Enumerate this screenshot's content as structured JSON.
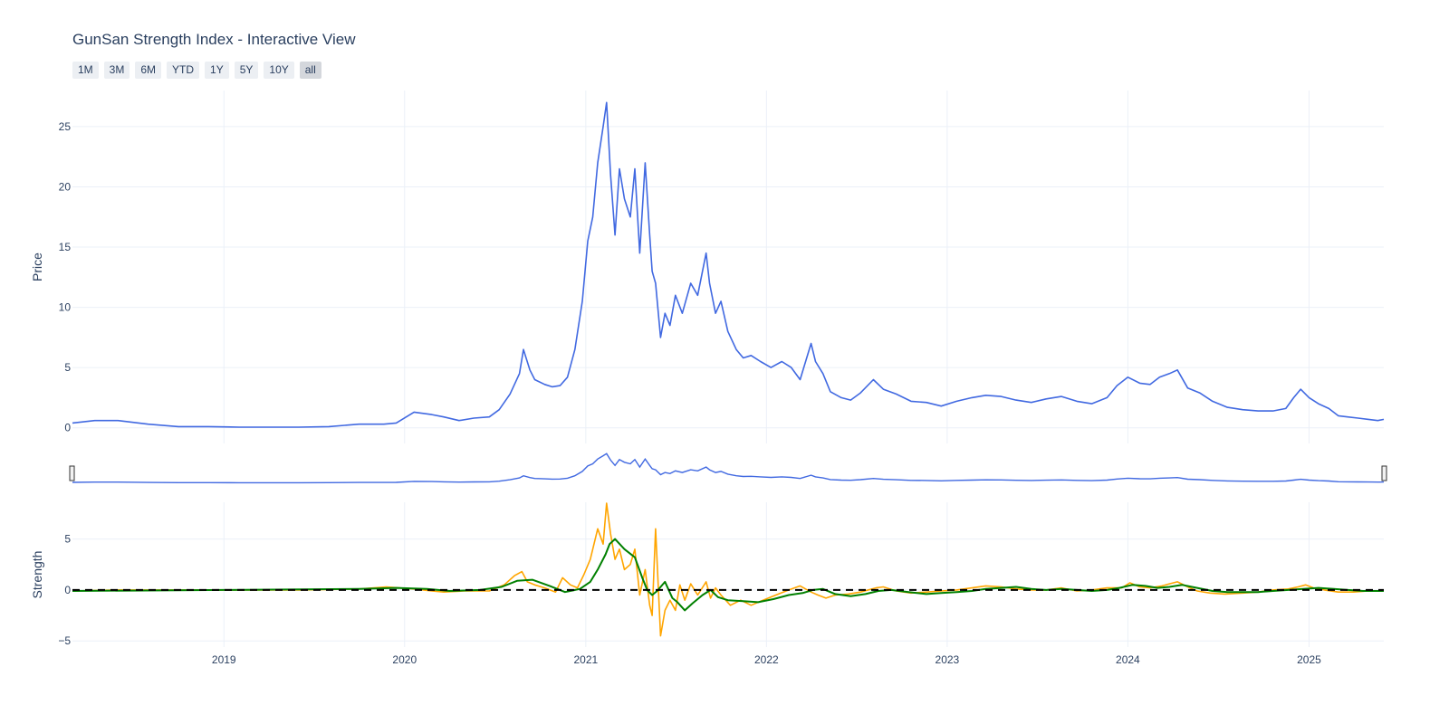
{
  "title": "GunSan Strength Index - Interactive View",
  "range_buttons": [
    "1M",
    "3M",
    "6M",
    "YTD",
    "1Y",
    "5Y",
    "10Y",
    "all"
  ],
  "active_range": "all",
  "colors": {
    "price_line": "#4169e1",
    "strength_raw": "#ffa500",
    "strength_smooth": "#008000",
    "zero_line": "#000000",
    "grid": "#ebf0f8",
    "text": "#2a3f5f"
  },
  "chart_data": [
    {
      "type": "line",
      "title": "GunSan Strength Index - Interactive View",
      "ylabel": "Price",
      "xlim": [
        "2018-03-01",
        "2025-06-01"
      ],
      "ylim": [
        -1.3,
        28
      ],
      "y_ticks": [
        0,
        5,
        10,
        15,
        20,
        25
      ],
      "x_ticks": [
        "2019",
        "2020",
        "2021",
        "2022",
        "2023",
        "2024",
        "2025"
      ],
      "grid": true,
      "series": [
        {
          "x": [
            "2018-03-01",
            "2018-04-15",
            "2018-06-01",
            "2018-08-01",
            "2018-10-01",
            "2018-12-01",
            "2019-02-01",
            "2019-04-01",
            "2019-06-01",
            "2019-08-01",
            "2019-10-01",
            "2019-11-20",
            "2019-12-15",
            "2020-01-20",
            "2020-02-25",
            "2020-03-20",
            "2020-04-20",
            "2020-05-20",
            "2020-06-20",
            "2020-07-10",
            "2020-08-01",
            "2020-08-20",
            "2020-08-28",
            "2020-09-10",
            "2020-09-20",
            "2020-10-10",
            "2020-10-25",
            "2020-11-10",
            "2020-11-25",
            "2020-12-10",
            "2020-12-25",
            "2021-01-05",
            "2021-01-15",
            "2021-01-25",
            "2021-02-05",
            "2021-02-12",
            "2021-02-20",
            "2021-03-01",
            "2021-03-10",
            "2021-03-20",
            "2021-04-01",
            "2021-04-10",
            "2021-04-20",
            "2021-05-01",
            "2021-05-10",
            "2021-05-15",
            "2021-05-22",
            "2021-06-01",
            "2021-06-10",
            "2021-06-20",
            "2021-07-01",
            "2021-07-15",
            "2021-08-01",
            "2021-08-15",
            "2021-09-01",
            "2021-09-08",
            "2021-09-20",
            "2021-10-01",
            "2021-10-15",
            "2021-11-01",
            "2021-11-15",
            "2021-12-01",
            "2021-12-20",
            "2022-01-10",
            "2022-02-01",
            "2022-02-20",
            "2022-03-10",
            "2022-04-01",
            "2022-04-10",
            "2022-04-25",
            "2022-05-10",
            "2022-06-01",
            "2022-06-20",
            "2022-07-10",
            "2022-08-05",
            "2022-08-25",
            "2022-09-20",
            "2022-10-20",
            "2022-11-20",
            "2022-12-20",
            "2023-01-20",
            "2023-02-20",
            "2023-03-20",
            "2023-04-20",
            "2023-05-20",
            "2023-06-20",
            "2023-07-20",
            "2023-08-20",
            "2023-09-20",
            "2023-10-20",
            "2023-11-20",
            "2023-12-10",
            "2024-01-01",
            "2024-01-25",
            "2024-02-15",
            "2024-03-05",
            "2024-03-25",
            "2024-04-10",
            "2024-05-01",
            "2024-05-25",
            "2024-06-20",
            "2024-07-20",
            "2024-08-20",
            "2024-09-20",
            "2024-10-20",
            "2024-11-15",
            "2024-12-01",
            "2024-12-15",
            "2025-01-01",
            "2025-01-20",
            "2025-02-10",
            "2025-03-01",
            "2025-03-20",
            "2025-04-10",
            "2025-05-01",
            "2025-05-20",
            "2025-06-01"
          ],
          "y": [
            0.4,
            0.6,
            0.6,
            0.3,
            0.1,
            0.1,
            0.05,
            0.05,
            0.05,
            0.1,
            0.3,
            0.3,
            0.4,
            1.3,
            1.1,
            0.9,
            0.6,
            0.8,
            0.9,
            1.5,
            2.8,
            4.5,
            6.5,
            4.8,
            4.0,
            3.6,
            3.4,
            3.5,
            4.2,
            6.5,
            10.5,
            15.5,
            17.5,
            22.0,
            25.0,
            27.0,
            21.0,
            16.0,
            21.5,
            19.0,
            17.5,
            21.5,
            14.5,
            22.0,
            16.0,
            13.0,
            12.0,
            7.5,
            9.5,
            8.5,
            11.0,
            9.5,
            12.0,
            11.0,
            14.5,
            12.0,
            9.5,
            10.5,
            8.0,
            6.5,
            5.8,
            6.0,
            5.5,
            5.0,
            5.5,
            5.0,
            4.0,
            7.0,
            5.5,
            4.5,
            3.0,
            2.5,
            2.3,
            2.9,
            4.0,
            3.2,
            2.8,
            2.2,
            2.1,
            1.8,
            2.2,
            2.5,
            2.7,
            2.6,
            2.3,
            2.1,
            2.4,
            2.6,
            2.2,
            2.0,
            2.5,
            3.5,
            4.2,
            3.7,
            3.6,
            4.2,
            4.5,
            4.8,
            3.3,
            2.9,
            2.2,
            1.7,
            1.5,
            1.4,
            1.4,
            1.6,
            2.5,
            3.2,
            2.5,
            2.0,
            1.6,
            1.0,
            0.9,
            0.8,
            0.7,
            0.6,
            0.7
          ]
        }
      ]
    },
    {
      "type": "line",
      "ylabel": "Strength",
      "xlim": [
        "2018-03-01",
        "2025-06-01"
      ],
      "ylim": [
        -5.6,
        8.6
      ],
      "y_ticks": [
        -5,
        0,
        5
      ],
      "x_ticks": [
        "2019",
        "2020",
        "2021",
        "2022",
        "2023",
        "2024",
        "2025"
      ],
      "grid": true,
      "series": [
        {
          "x": [
            "2018-03-01",
            "2018-06-01",
            "2019-01-01",
            "2019-06-01",
            "2019-10-01",
            "2019-11-25",
            "2019-12-20",
            "2020-01-20",
            "2020-02-25",
            "2020-03-20",
            "2020-05-01",
            "2020-06-20",
            "2020-07-20",
            "2020-08-10",
            "2020-08-25",
            "2020-09-05",
            "2020-09-20",
            "2020-10-10",
            "2020-11-01",
            "2020-11-15",
            "2020-12-01",
            "2020-12-15",
            "2020-12-28",
            "2021-01-10",
            "2021-01-25",
            "2021-02-05",
            "2021-02-12",
            "2021-02-20",
            "2021-03-01",
            "2021-03-10",
            "2021-03-20",
            "2021-04-01",
            "2021-04-10",
            "2021-04-20",
            "2021-05-01",
            "2021-05-10",
            "2021-05-15",
            "2021-05-22",
            "2021-06-01",
            "2021-06-10",
            "2021-06-20",
            "2021-07-01",
            "2021-07-10",
            "2021-07-20",
            "2021-08-01",
            "2021-08-15",
            "2021-09-01",
            "2021-09-10",
            "2021-09-20",
            "2021-10-01",
            "2021-10-20",
            "2021-11-10",
            "2021-12-01",
            "2021-12-25",
            "2022-01-20",
            "2022-02-15",
            "2022-03-10",
            "2022-04-01",
            "2022-04-15",
            "2022-05-01",
            "2022-05-20",
            "2022-06-15",
            "2022-07-10",
            "2022-08-10",
            "2022-08-25",
            "2022-09-20",
            "2022-10-20",
            "2022-11-20",
            "2022-12-20",
            "2023-01-20",
            "2023-02-20",
            "2023-03-20",
            "2023-04-20",
            "2023-05-20",
            "2023-06-20",
            "2023-07-20",
            "2023-08-20",
            "2023-09-20",
            "2023-10-20",
            "2023-11-20",
            "2023-12-20",
            "2024-01-05",
            "2024-01-25",
            "2024-02-15",
            "2024-03-10",
            "2024-03-25",
            "2024-04-10",
            "2024-05-01",
            "2024-05-20",
            "2024-06-15",
            "2024-07-15",
            "2024-08-20",
            "2024-09-20",
            "2024-10-20",
            "2024-11-20",
            "2024-12-10",
            "2024-12-25",
            "2025-01-10",
            "2025-02-01",
            "2025-03-01",
            "2025-04-01",
            "2025-05-01",
            "2025-06-01"
          ],
          "y": [
            -0.1,
            0.0,
            0.0,
            0.0,
            0.1,
            0.3,
            0.2,
            0.1,
            -0.1,
            -0.2,
            -0.1,
            -0.1,
            0.5,
            1.4,
            1.8,
            0.8,
            0.5,
            0.2,
            -0.2,
            1.2,
            0.5,
            0.2,
            1.5,
            3.0,
            6.0,
            4.5,
            8.5,
            5.5,
            3.0,
            4.0,
            2.0,
            2.5,
            4.0,
            -0.5,
            2.0,
            -1.5,
            -2.5,
            6.0,
            -4.5,
            -2.0,
            -1.0,
            -2.0,
            0.5,
            -1.0,
            0.6,
            -0.5,
            0.8,
            -0.8,
            0.2,
            -0.5,
            -1.5,
            -1.0,
            -1.5,
            -1.0,
            -0.5,
            0.0,
            0.4,
            -0.2,
            -0.5,
            -0.8,
            -0.5,
            -0.4,
            -0.2,
            0.2,
            0.3,
            -0.1,
            -0.3,
            -0.2,
            -0.1,
            0.0,
            0.2,
            0.4,
            0.3,
            0.1,
            0.0,
            0.0,
            0.2,
            -0.1,
            0.0,
            0.2,
            0.2,
            0.7,
            0.3,
            0.2,
            0.4,
            0.6,
            0.8,
            0.3,
            -0.1,
            -0.3,
            -0.4,
            -0.3,
            -0.2,
            0.0,
            0.1,
            0.3,
            0.5,
            0.2,
            0.0,
            -0.2,
            -0.2,
            -0.1,
            -0.1
          ]
        },
        {
          "x": [
            "2018-03-01",
            "2019-01-01",
            "2019-10-01",
            "2019-12-15",
            "2020-02-15",
            "2020-04-01",
            "2020-06-01",
            "2020-07-15",
            "2020-08-15",
            "2020-09-15",
            "2020-10-20",
            "2020-11-20",
            "2020-12-20",
            "2021-01-10",
            "2021-01-25",
            "2021-02-10",
            "2021-02-18",
            "2021-03-01",
            "2021-03-20",
            "2021-04-10",
            "2021-04-25",
            "2021-05-05",
            "2021-05-15",
            "2021-05-25",
            "2021-06-10",
            "2021-06-25",
            "2021-07-05",
            "2021-07-20",
            "2021-08-05",
            "2021-08-25",
            "2021-09-10",
            "2021-09-25",
            "2021-10-15",
            "2021-11-15",
            "2021-12-15",
            "2022-01-15",
            "2022-02-15",
            "2022-03-15",
            "2022-04-05",
            "2022-04-25",
            "2022-05-20",
            "2022-06-20",
            "2022-07-20",
            "2022-08-15",
            "2022-09-10",
            "2022-10-15",
            "2022-11-20",
            "2022-12-20",
            "2023-01-20",
            "2023-02-20",
            "2023-03-20",
            "2023-04-20",
            "2023-05-20",
            "2023-06-20",
            "2023-07-20",
            "2023-08-20",
            "2023-09-20",
            "2023-10-20",
            "2023-11-20",
            "2023-12-15",
            "2024-01-10",
            "2024-02-05",
            "2024-03-01",
            "2024-03-25",
            "2024-04-20",
            "2024-05-20",
            "2024-06-20",
            "2024-07-20",
            "2024-08-20",
            "2024-09-20",
            "2024-10-20",
            "2024-11-20",
            "2024-12-20",
            "2025-01-20",
            "2025-02-20",
            "2025-03-20",
            "2025-04-20",
            "2025-05-20",
            "2025-06-01"
          ],
          "y": [
            -0.1,
            0.0,
            0.1,
            0.2,
            0.1,
            -0.1,
            0.0,
            0.3,
            0.9,
            1.0,
            0.4,
            -0.2,
            0.1,
            0.8,
            2.0,
            3.5,
            4.5,
            5.0,
            4.0,
            3.2,
            1.2,
            0.0,
            -0.5,
            -0.1,
            0.8,
            -0.8,
            -1.2,
            -2.0,
            -1.3,
            -0.5,
            0.0,
            -0.7,
            -1.0,
            -1.1,
            -1.2,
            -0.9,
            -0.5,
            -0.3,
            0.0,
            0.1,
            -0.4,
            -0.6,
            -0.4,
            -0.1,
            0.0,
            -0.2,
            -0.4,
            -0.3,
            -0.2,
            -0.1,
            0.1,
            0.2,
            0.3,
            0.1,
            0.0,
            0.1,
            0.0,
            -0.1,
            0.0,
            0.2,
            0.5,
            0.4,
            0.2,
            0.3,
            0.5,
            0.2,
            -0.1,
            -0.2,
            -0.2,
            -0.2,
            -0.1,
            0.0,
            0.1,
            0.2,
            0.1,
            0.0,
            -0.1,
            -0.1,
            -0.1
          ]
        }
      ],
      "reference_lines": [
        {
          "y": 0,
          "style": "dashed"
        }
      ]
    }
  ]
}
